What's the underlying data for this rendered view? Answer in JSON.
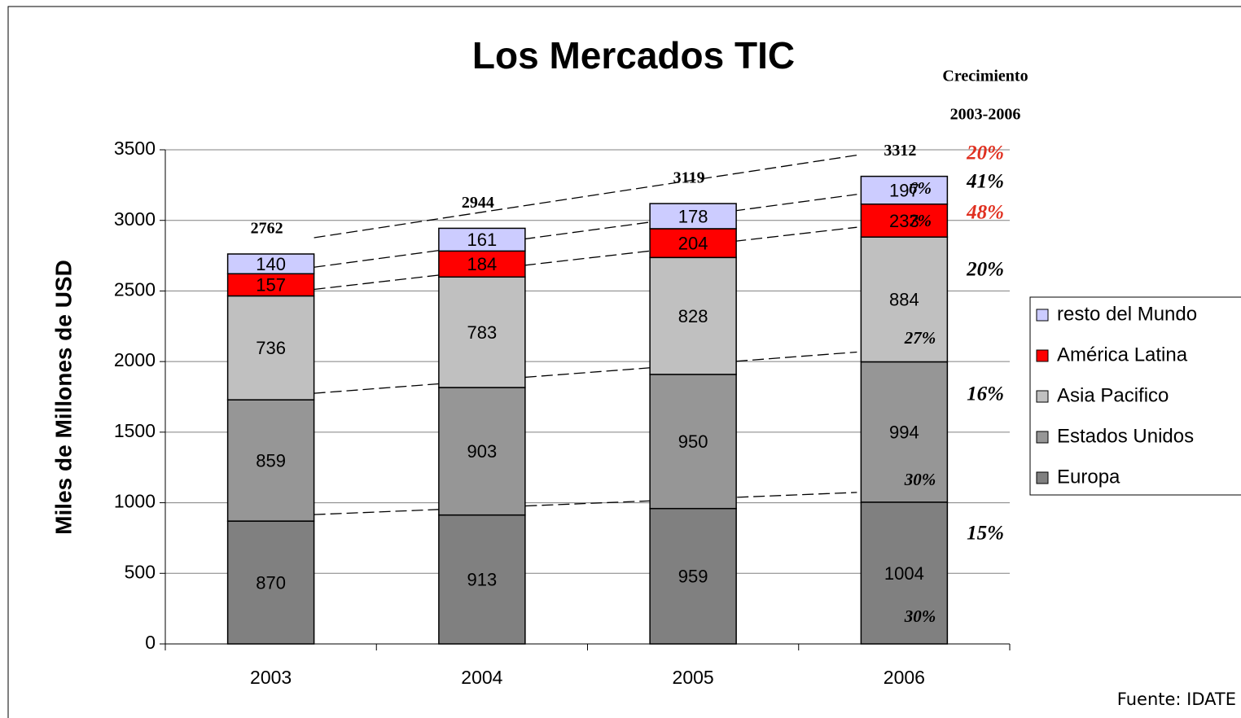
{
  "chart_data": {
    "type": "stacked_bar",
    "title": "Los Mercados TIC",
    "y_label": "Miles de Millones de USD",
    "categories": [
      "2003",
      "2004",
      "2005",
      "2006"
    ],
    "series": [
      {
        "name": "Europa",
        "color": "#808080",
        "values": [
          870,
          913,
          959,
          1004
        ]
      },
      {
        "name": "Estados Unidos",
        "color": "#969696",
        "values": [
          859,
          903,
          950,
          994
        ]
      },
      {
        "name": "Asia Pacifico",
        "color": "#c0c0c0",
        "values": [
          736,
          783,
          828,
          884
        ]
      },
      {
        "name": "América Latina",
        "color": "#ff0000",
        "values": [
          157,
          184,
          204,
          233
        ]
      },
      {
        "name": "resto del Mundo",
        "color": "#ccccff",
        "values": [
          140,
          161,
          178,
          197
        ]
      }
    ],
    "totals": [
      2762,
      2944,
      3119,
      3312
    ],
    "ylim": [
      0,
      3500
    ],
    "yticks": [
      0,
      500,
      1000,
      1500,
      2000,
      2500,
      3000,
      3500
    ],
    "grid": true,
    "growth_title": [
      "Crecimiento",
      "2003-2006"
    ],
    "growth": [
      {
        "text": "20%",
        "color": "#e03020"
      },
      {
        "text": "41%",
        "color": "#000000"
      },
      {
        "text": "48%",
        "color": "#e03020"
      },
      {
        "text": "20%",
        "color": "#000000"
      },
      {
        "text": "16%",
        "color": "#000000"
      },
      {
        "text": "15%",
        "color": "#000000"
      }
    ],
    "shares": [
      "6%",
      "7%",
      "27%",
      "30%",
      "30%"
    ],
    "source": "Fuente: IDATE"
  }
}
